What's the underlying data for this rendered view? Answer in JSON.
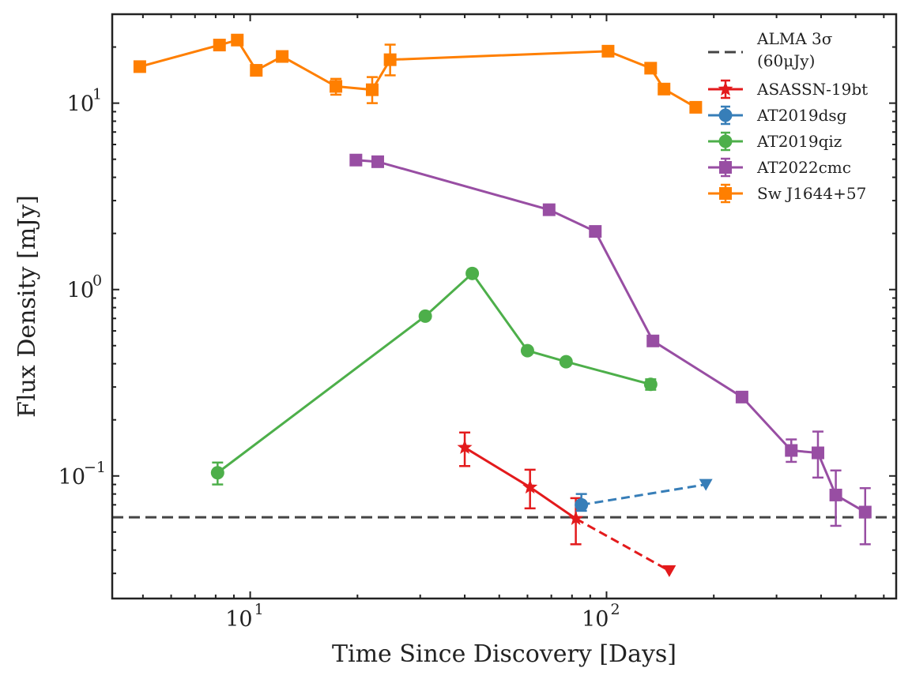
{
  "chart_data": {
    "type": "line",
    "xscale": "log",
    "yscale": "log",
    "xlabel": "Time Since Discovery [Days]",
    "ylabel": "Flux Density [mJy]",
    "xlim": [
      4.1,
      650
    ],
    "ylim": [
      0.022,
      30
    ],
    "x_ticks": [
      {
        "base": "10",
        "exp": "1",
        "value": 10
      },
      {
        "base": "10",
        "exp": "2",
        "value": 100
      }
    ],
    "y_ticks": [
      {
        "base": "10",
        "exp": "−1",
        "value": 0.1
      },
      {
        "base": "10",
        "exp": "0",
        "value": 1
      },
      {
        "base": "10",
        "exp": "1",
        "value": 10
      }
    ],
    "grid": false,
    "legend_position": "top-right",
    "reference_line": {
      "label_line1": "ALMA 3σ",
      "label_line2": "(60μJy)",
      "y": 0.06,
      "color": "#444444"
    },
    "series": [
      {
        "name": "ASASSN-19bt",
        "color": "#e31a1c",
        "marker": "star",
        "points": [
          {
            "x": 40,
            "y": 0.142,
            "err": [
              0.029,
              0.029
            ]
          },
          {
            "x": 61,
            "y": 0.087,
            "err": [
              0.02,
              0.021
            ]
          },
          {
            "x": 82,
            "y": 0.059,
            "err": [
              0.016,
              0.017
            ]
          }
        ],
        "upper_limits": [
          {
            "x": 150,
            "y": 0.031
          }
        ]
      },
      {
        "name": "AT2019dsg",
        "color": "#377eb8",
        "marker": "circle",
        "points": [
          {
            "x": 85,
            "y": 0.07,
            "err": [
              0.005,
              0.01
            ]
          }
        ],
        "upper_limits": [
          {
            "x": 190,
            "y": 0.09
          }
        ]
      },
      {
        "name": "AT2019qiz",
        "color": "#4daf4a",
        "marker": "circle",
        "points": [
          {
            "x": 8.1,
            "y": 0.104,
            "err": [
              0.014,
              0.014
            ]
          },
          {
            "x": 31,
            "y": 0.72,
            "err": [
              0.02,
              0.02
            ]
          },
          {
            "x": 42,
            "y": 1.22,
            "err": [
              0.03,
              0.03
            ]
          },
          {
            "x": 60,
            "y": 0.47,
            "err": [
              0.015,
              0.015
            ]
          },
          {
            "x": 77,
            "y": 0.41,
            "err": [
              0.012,
              0.012
            ]
          },
          {
            "x": 133,
            "y": 0.31,
            "err": [
              0.02,
              0.02
            ]
          }
        ]
      },
      {
        "name": "AT2022cmc",
        "color": "#984ea3",
        "marker": "square",
        "points": [
          {
            "x": 19.8,
            "y": 4.95,
            "err": [
              0.15,
              0.15
            ]
          },
          {
            "x": 22.8,
            "y": 4.85,
            "err": [
              0.15,
              0.15
            ]
          },
          {
            "x": 69,
            "y": 2.68,
            "err": [
              0.08,
              0.08
            ]
          },
          {
            "x": 93,
            "y": 2.05,
            "err": [
              0.06,
              0.06
            ]
          },
          {
            "x": 135,
            "y": 0.53,
            "err": [
              0.02,
              0.02
            ]
          },
          {
            "x": 240,
            "y": 0.265,
            "err": [
              0.01,
              0.01
            ]
          },
          {
            "x": 330,
            "y": 0.137,
            "err": [
              0.018,
              0.02
            ]
          },
          {
            "x": 392,
            "y": 0.133,
            "err": [
              0.035,
              0.04
            ]
          },
          {
            "x": 440,
            "y": 0.079,
            "err": [
              0.025,
              0.028
            ]
          },
          {
            "x": 532,
            "y": 0.064,
            "err": [
              0.021,
              0.022
            ]
          }
        ]
      },
      {
        "name": "Sw J1644+57",
        "color": "#ff7f00",
        "marker": "square",
        "points": [
          {
            "x": 4.9,
            "y": 15.7,
            "err": [
              0.4,
              0.4
            ]
          },
          {
            "x": 8.2,
            "y": 20.5,
            "err": [
              0.4,
              0.4
            ]
          },
          {
            "x": 9.2,
            "y": 21.8,
            "err": [
              0.4,
              0.4
            ]
          },
          {
            "x": 10.4,
            "y": 15.0,
            "err": [
              0.4,
              0.4
            ]
          },
          {
            "x": 12.3,
            "y": 17.8,
            "err": [
              0.4,
              0.4
            ]
          },
          {
            "x": 17.4,
            "y": 12.3,
            "err": [
              1.2,
              1.2
            ]
          },
          {
            "x": 22,
            "y": 11.8,
            "err": [
              1.8,
              2.0
            ]
          },
          {
            "x": 24.7,
            "y": 17.1,
            "err": [
              3.0,
              3.5
            ]
          },
          {
            "x": 101,
            "y": 19.0,
            "err": [
              0.5,
              0.5
            ]
          },
          {
            "x": 133,
            "y": 15.4,
            "err": [
              0.4,
              0.4
            ]
          },
          {
            "x": 145,
            "y": 11.9,
            "err": [
              0.3,
              0.3
            ]
          },
          {
            "x": 178,
            "y": 9.5,
            "err": [
              0.3,
              0.3
            ]
          }
        ]
      }
    ]
  }
}
